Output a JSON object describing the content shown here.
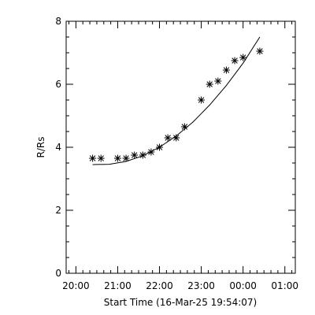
{
  "chart_data": {
    "type": "scatter",
    "xlabel": "Start Time (16-Mar-25 19:54:07)",
    "ylabel": "R/Rs",
    "x_ticks": [
      "20:00",
      "21:00",
      "22:00",
      "23:00",
      "00:00",
      "01:00"
    ],
    "x_tick_minutes": [
      0,
      60,
      120,
      180,
      240,
      300
    ],
    "xlim_minutes": [
      -14,
      315
    ],
    "ylim": [
      0,
      8
    ],
    "y_ticks": [
      0,
      2,
      4,
      6,
      8
    ],
    "y_minor_step": 0.5,
    "x_minor_step_minutes": 10,
    "x_axis_origin": "20:00",
    "series": [
      {
        "marker": "asterisk",
        "points": [
          {
            "time": "20:24",
            "r": 3.65
          },
          {
            "time": "20:36",
            "r": 3.65
          },
          {
            "time": "21:00",
            "r": 3.65
          },
          {
            "time": "21:12",
            "r": 3.65
          },
          {
            "time": "21:24",
            "r": 3.75
          },
          {
            "time": "21:36",
            "r": 3.75
          },
          {
            "time": "21:48",
            "r": 3.85
          },
          {
            "time": "22:00",
            "r": 4.0
          },
          {
            "time": "22:12",
            "r": 4.3
          },
          {
            "time": "22:24",
            "r": 4.3
          },
          {
            "time": "22:36",
            "r": 4.65
          },
          {
            "time": "23:00",
            "r": 5.5
          },
          {
            "time": "23:12",
            "r": 6.0
          },
          {
            "time": "23:24",
            "r": 6.1
          },
          {
            "time": "23:36",
            "r": 6.45
          },
          {
            "time": "23:48",
            "r": 6.75
          },
          {
            "time": "00:00",
            "r": 6.85
          },
          {
            "time": "00:24",
            "r": 7.05
          }
        ]
      },
      {
        "style": "line",
        "points": [
          {
            "time": "20:24",
            "r": 3.45
          },
          {
            "time": "20:48",
            "r": 3.46
          },
          {
            "time": "21:12",
            "r": 3.55
          },
          {
            "time": "21:36",
            "r": 3.73
          },
          {
            "time": "22:00",
            "r": 4.0
          },
          {
            "time": "22:24",
            "r": 4.36
          },
          {
            "time": "22:48",
            "r": 4.8
          },
          {
            "time": "23:12",
            "r": 5.34
          },
          {
            "time": "23:36",
            "r": 5.96
          },
          {
            "time": "00:00",
            "r": 6.67
          },
          {
            "time": "00:24",
            "r": 7.5
          }
        ]
      }
    ]
  }
}
